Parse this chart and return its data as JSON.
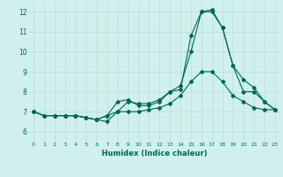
{
  "xlabel": "Humidex (Indice chaleur)",
  "ylabel": "",
  "xlim": [
    -0.5,
    23.5
  ],
  "ylim": [
    5.5,
    12.5
  ],
  "xticks": [
    0,
    1,
    2,
    3,
    4,
    5,
    6,
    7,
    8,
    9,
    10,
    11,
    12,
    13,
    14,
    15,
    16,
    17,
    18,
    19,
    20,
    21,
    22,
    23
  ],
  "yticks": [
    6,
    7,
    8,
    9,
    10,
    11,
    12
  ],
  "background_color": "#cff0ec",
  "grid_color": "#b8ddd8",
  "line_color": "#006655",
  "lines": [
    [
      7.0,
      6.8,
      6.8,
      6.8,
      6.8,
      6.7,
      6.6,
      6.8,
      7.5,
      7.6,
      7.3,
      7.3,
      7.5,
      8.0,
      8.1,
      10.8,
      12.0,
      12.1,
      11.2,
      9.3,
      8.6,
      8.2,
      7.5,
      7.1
    ],
    [
      7.0,
      6.8,
      6.8,
      6.8,
      6.8,
      6.7,
      6.6,
      6.5,
      7.0,
      7.5,
      7.4,
      7.4,
      7.6,
      8.0,
      8.3,
      10.0,
      12.0,
      12.0,
      11.2,
      9.3,
      8.0,
      8.0,
      7.5,
      7.1
    ],
    [
      7.0,
      6.8,
      6.8,
      6.8,
      6.8,
      6.7,
      6.6,
      6.8,
      7.0,
      7.0,
      7.0,
      7.1,
      7.2,
      7.4,
      7.8,
      8.5,
      9.0,
      9.0,
      8.5,
      7.8,
      7.5,
      7.2,
      7.1,
      7.1
    ]
  ]
}
